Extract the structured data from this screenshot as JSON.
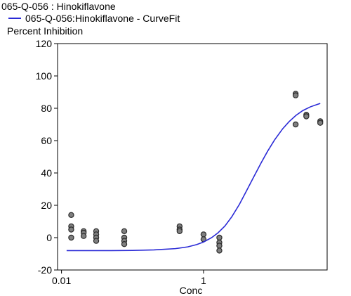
{
  "chart_data": {
    "type": "scatter",
    "title": "065-Q-056  : Hinokiflavone",
    "legend": [
      {
        "name": "065-Q-056:Hinokiflavone - CurveFit",
        "color": "#2a2ad6"
      }
    ],
    "ylabel": "Percent Inhibition",
    "xlabel": "Conc",
    "x_scale": "log",
    "xlim": [
      0.0088,
      55
    ],
    "ylim": [
      -20,
      120
    ],
    "x_ticks": [
      {
        "value": 0.01,
        "label": "0.01"
      },
      {
        "value": 1,
        "label": "1"
      }
    ],
    "y_ticks": [
      {
        "value": -20,
        "label": "-20"
      },
      {
        "value": 0,
        "label": "0"
      },
      {
        "value": 20,
        "label": "20"
      },
      {
        "value": 40,
        "label": "40"
      },
      {
        "value": 60,
        "label": "60"
      },
      {
        "value": 80,
        "label": "80"
      },
      {
        "value": 100,
        "label": "100"
      },
      {
        "value": 120,
        "label": "120"
      }
    ],
    "points": [
      {
        "x": 0.0137,
        "y": 14
      },
      {
        "x": 0.0137,
        "y": 7
      },
      {
        "x": 0.0137,
        "y": 5
      },
      {
        "x": 0.0137,
        "y": 0
      },
      {
        "x": 0.0205,
        "y": 4
      },
      {
        "x": 0.0205,
        "y": 3
      },
      {
        "x": 0.0205,
        "y": 1
      },
      {
        "x": 0.0308,
        "y": 4
      },
      {
        "x": 0.0308,
        "y": 2
      },
      {
        "x": 0.0308,
        "y": 0
      },
      {
        "x": 0.0308,
        "y": -2
      },
      {
        "x": 0.0765,
        "y": 4
      },
      {
        "x": 0.0765,
        "y": 0
      },
      {
        "x": 0.0765,
        "y": -2
      },
      {
        "x": 0.0765,
        "y": -4
      },
      {
        "x": 0.46,
        "y": 7
      },
      {
        "x": 0.46,
        "y": 5
      },
      {
        "x": 0.46,
        "y": 4
      },
      {
        "x": 1.0,
        "y": 2
      },
      {
        "x": 1.0,
        "y": -1
      },
      {
        "x": 1.67,
        "y": 0
      },
      {
        "x": 1.67,
        "y": -3
      },
      {
        "x": 1.67,
        "y": -5
      },
      {
        "x": 1.67,
        "y": -8
      },
      {
        "x": 19.8,
        "y": 89
      },
      {
        "x": 19.8,
        "y": 88
      },
      {
        "x": 19.8,
        "y": 70
      },
      {
        "x": 28.0,
        "y": 76
      },
      {
        "x": 28.0,
        "y": 75
      },
      {
        "x": 44.0,
        "y": 72
      },
      {
        "x": 44.0,
        "y": 71
      }
    ],
    "curve": {
      "name": "065-Q-056:Hinokiflavone - CurveFit",
      "x": [
        0.0118,
        0.02,
        0.05,
        0.1,
        0.2,
        0.4,
        0.6,
        0.8,
        1.0,
        1.3,
        1.6,
        2.0,
        2.5,
        3.2,
        4.0,
        5.0,
        6.5,
        8.0,
        10.0,
        13.0,
        16.0,
        20.0,
        25.0,
        32.0,
        40.0,
        44.0
      ],
      "y": [
        -8,
        -8,
        -8,
        -7.9,
        -7.6,
        -6.8,
        -5.7,
        -4.3,
        -2.7,
        0.0,
        3.0,
        7.2,
        12.9,
        20.6,
        28.7,
        36.9,
        46.4,
        53.5,
        60.4,
        67.3,
        71.7,
        75.6,
        78.6,
        80.9,
        82.4,
        83.0
      ]
    },
    "point_color": "#7f7f7f",
    "curve_color": "#2a2ad6",
    "grid": false
  }
}
